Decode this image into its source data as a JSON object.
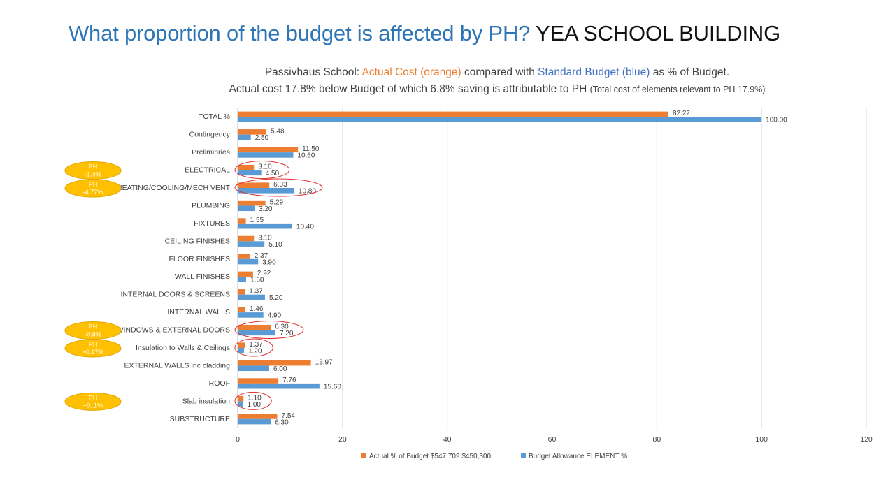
{
  "slide": {
    "title_main": "What proportion of the budget is affected by PH?",
    "title_suffix": "YEA SCHOOL BUILDING",
    "subtitle_line1": {
      "prefix": "Passivhaus School: ",
      "orange": "Actual Cost (orange)",
      "mid": " compared with ",
      "blue": "Standard Budget (blue)",
      "suffix": " as % of Budget."
    },
    "subtitle_line2": {
      "main": "Actual cost 17.8% below Budget of which 6.8% saving is attributable to PH ",
      "small": "(Total cost of elements relevant to PH 17.9%)"
    }
  },
  "colors": {
    "actual": "#ED7D31",
    "budget": "#5B9BD5",
    "badge_fill": "#FFC000",
    "badge_stroke": "#E0A800",
    "highlight_ellipse": "#E03030",
    "grid": "#D9D9D9"
  },
  "chart_data": {
    "type": "bar",
    "orientation": "horizontal",
    "categories": [
      "TOTAL %",
      "Contingency",
      "Preliminries",
      "ELECTRICAL",
      "HEATING/COOLING/MECH VENT",
      "PLUMBING",
      "FIXTURES",
      "CEILING FINISHES",
      "FLOOR FINISHES",
      "WALL FINISHES",
      "INTERNAL DOORS & SCREENS",
      "INTERNAL WALLS",
      "WINDOWS & EXTERNAL DOORS",
      "Insulation to Walls & Ceilings",
      "EXTERNAL WALLS inc cladding",
      "ROOF",
      "Slab insulation",
      "SUBSTRUCTURE"
    ],
    "series": [
      {
        "name": "Actual % of Budget $547,709 $450,300",
        "values": [
          82.22,
          5.48,
          11.5,
          3.1,
          6.03,
          5.29,
          1.55,
          3.1,
          2.37,
          2.92,
          1.37,
          1.46,
          6.3,
          1.37,
          13.97,
          7.76,
          1.1,
          7.54
        ],
        "labels": [
          "82.22",
          "5.48",
          "11.50",
          "3.10",
          "6.03",
          "5.29",
          "1.55",
          "3.10",
          "2.37",
          "2.92",
          "1.37",
          "1.46",
          "6.30",
          "1.37",
          "13.97",
          "7.76",
          "1.10",
          "7.54"
        ]
      },
      {
        "name": "Budget Allowance ELEMENT %",
        "values": [
          100.0,
          2.5,
          10.6,
          4.5,
          10.8,
          3.2,
          10.4,
          5.1,
          3.9,
          1.6,
          5.2,
          4.9,
          7.2,
          1.2,
          6.0,
          15.6,
          1.0,
          6.3
        ],
        "labels": [
          "100.00",
          "2.50",
          "10.60",
          "4.50",
          "10.80",
          "3.20",
          "10.40",
          "5.10",
          "3.90",
          "1.60",
          "5.20",
          "4.90",
          "7.20",
          "1.20",
          "6.00",
          "15.60",
          "1.00",
          "6.30"
        ]
      }
    ],
    "xlim": [
      0,
      120
    ],
    "xticks": [
      "0",
      "20",
      "40",
      "60",
      "80",
      "100",
      "120"
    ],
    "xtick_values": [
      0,
      20,
      40,
      60,
      80,
      100,
      120
    ],
    "grid": true,
    "legend_position": "bottom",
    "annotations": [
      {
        "category": "ELECTRICAL",
        "badge": [
          "PH",
          "-1.4%"
        ]
      },
      {
        "category": "HEATING/COOLING/MECH VENT",
        "badge": [
          "PH",
          "-4.77%"
        ]
      },
      {
        "category": "WINDOWS & EXTERNAL DOORS",
        "badge": [
          "PH",
          "-0.9%"
        ]
      },
      {
        "category": "Insulation to Walls & Ceilings",
        "badge": [
          "PH",
          "+0.17%"
        ]
      },
      {
        "category": "Slab insulation",
        "badge": [
          "PH",
          "+0..1%"
        ]
      }
    ]
  }
}
